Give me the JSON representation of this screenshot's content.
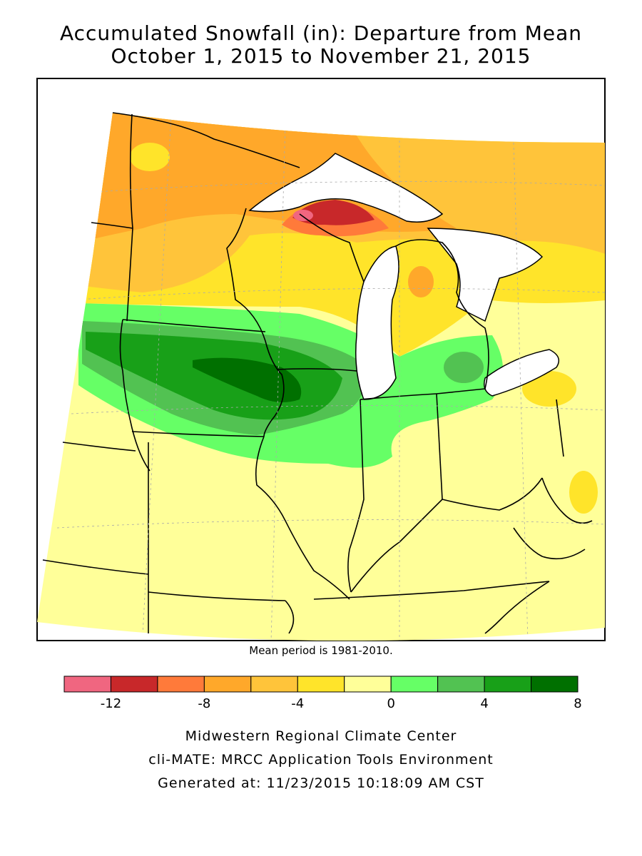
{
  "title_line1": "Accumulated Snowfall (in): Departure from Mean",
  "title_line2": "October 1, 2015 to November 21, 2015",
  "mean_note": "Mean period is 1981-2010.",
  "legend": {
    "colors": [
      "#f06680",
      "#c8282a",
      "#ff7a3a",
      "#ffa82a",
      "#ffc43a",
      "#ffe42a",
      "#ffff99",
      "#66ff66",
      "#52c252",
      "#18a018",
      "#007000"
    ],
    "tick_labels": [
      "-12",
      "-8",
      "-4",
      "0",
      "4",
      "8"
    ],
    "tick_values": [
      -12,
      -8,
      -4,
      0,
      4,
      8
    ],
    "min": -14,
    "max": 8
  },
  "credits": {
    "line1": "Midwestern Regional Climate Center",
    "line2": "cli-MATE: MRCC Application Tools Environment",
    "line3": "Generated at: 11/23/2015 10:18:09 AM CST"
  }
}
